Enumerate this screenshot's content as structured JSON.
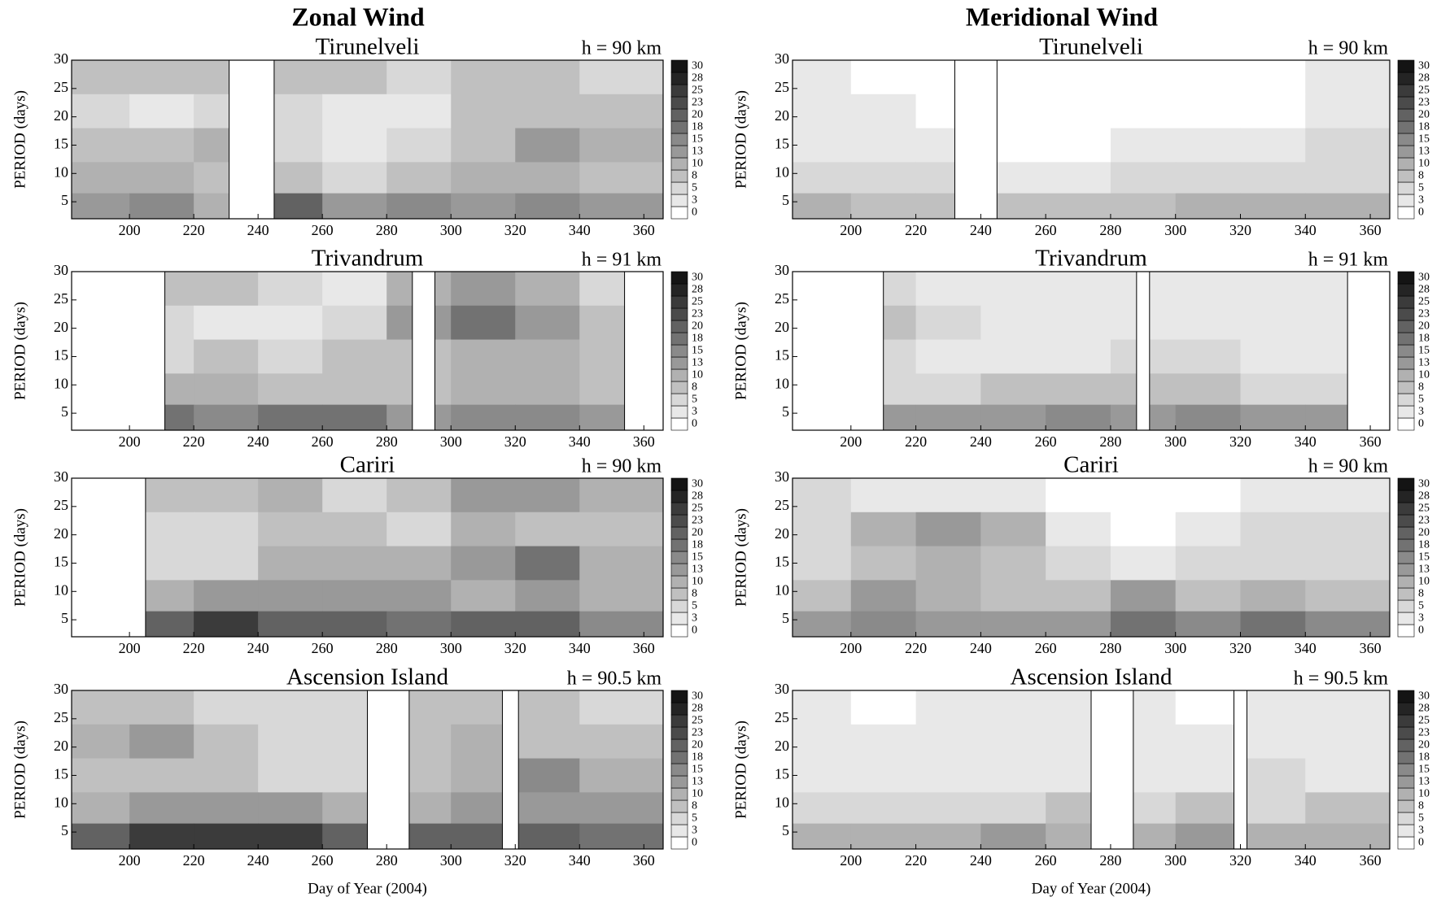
{
  "headers": [
    "Zonal Wind",
    "Meridional Wind"
  ],
  "chart_data": [
    {
      "type": "contour",
      "title": "Tirunelveli",
      "subtitle": "h = 90 km",
      "ylabel": "PERIOD (days)",
      "xlim": [
        182,
        366
      ],
      "ylim": [
        2,
        30
      ],
      "xticks": [
        200,
        220,
        240,
        260,
        280,
        300,
        320,
        340,
        360
      ],
      "yticks": [
        5,
        10,
        15,
        20,
        25,
        30
      ],
      "levels": [
        0,
        3,
        5,
        8,
        10,
        13,
        15,
        18,
        20,
        23,
        25,
        28,
        30
      ],
      "gaps": [
        [
          231,
          245
        ]
      ],
      "x": [
        190,
        210,
        230,
        250,
        270,
        290,
        310,
        330,
        350
      ],
      "y": [
        27,
        21,
        15,
        9,
        4
      ],
      "z": [
        [
          8,
          8,
          8,
          8,
          8,
          5,
          8,
          8,
          5
        ],
        [
          5,
          3,
          5,
          5,
          3,
          3,
          8,
          8,
          8
        ],
        [
          8,
          8,
          10,
          5,
          3,
          5,
          8,
          13,
          10
        ],
        [
          10,
          10,
          8,
          8,
          5,
          8,
          10,
          10,
          8
        ],
        [
          13,
          15,
          10,
          20,
          13,
          15,
          13,
          15,
          13
        ]
      ]
    },
    {
      "type": "contour",
      "title": "Trivandrum",
      "subtitle": "h = 91 km",
      "ylabel": "PERIOD (days)",
      "xlim": [
        182,
        366
      ],
      "ylim": [
        2,
        30
      ],
      "xticks": [
        200,
        220,
        240,
        260,
        280,
        300,
        320,
        340,
        360
      ],
      "yticks": [
        5,
        10,
        15,
        20,
        25,
        30
      ],
      "levels": [
        0,
        3,
        5,
        8,
        10,
        13,
        15,
        18,
        20,
        23,
        25,
        28,
        30
      ],
      "gaps": [
        [
          182,
          211
        ],
        [
          288,
          295
        ],
        [
          354,
          366
        ]
      ],
      "x": [
        190,
        210,
        230,
        250,
        270,
        290,
        310,
        330,
        350
      ],
      "y": [
        27,
        21,
        15,
        9,
        4
      ],
      "z": [
        [
          5,
          8,
          8,
          5,
          3,
          10,
          13,
          10,
          5
        ],
        [
          5,
          5,
          3,
          3,
          5,
          13,
          18,
          13,
          8
        ],
        [
          5,
          5,
          8,
          5,
          8,
          8,
          10,
          10,
          8
        ],
        [
          8,
          10,
          10,
          8,
          8,
          8,
          10,
          10,
          8
        ],
        [
          13,
          18,
          15,
          18,
          18,
          13,
          15,
          15,
          13
        ]
      ]
    },
    {
      "type": "contour",
      "title": "Cariri",
      "subtitle": "h = 90 km",
      "ylabel": "PERIOD (days)",
      "xlim": [
        182,
        366
      ],
      "ylim": [
        2,
        30
      ],
      "xticks": [
        200,
        220,
        240,
        260,
        280,
        300,
        320,
        340,
        360
      ],
      "yticks": [
        5,
        10,
        15,
        20,
        25,
        30
      ],
      "levels": [
        0,
        3,
        5,
        8,
        10,
        13,
        15,
        18,
        20,
        23,
        25,
        28,
        30
      ],
      "gaps": [
        [
          182,
          205
        ]
      ],
      "x": [
        190,
        210,
        230,
        250,
        270,
        290,
        310,
        330,
        350
      ],
      "y": [
        27,
        21,
        15,
        9,
        4
      ],
      "z": [
        [
          5,
          8,
          8,
          10,
          5,
          8,
          13,
          13,
          10
        ],
        [
          5,
          5,
          5,
          8,
          8,
          5,
          10,
          8,
          8
        ],
        [
          5,
          5,
          5,
          10,
          10,
          10,
          13,
          18,
          10
        ],
        [
          8,
          10,
          13,
          13,
          13,
          13,
          10,
          13,
          10
        ],
        [
          15,
          20,
          25,
          20,
          20,
          18,
          20,
          20,
          15
        ]
      ]
    },
    {
      "type": "contour",
      "title": "Ascension Island",
      "subtitle": "h = 90.5 km",
      "ylabel": "PERIOD (days)",
      "xlabel": "Day of Year  (2004)",
      "xlim": [
        182,
        366
      ],
      "ylim": [
        2,
        30
      ],
      "xticks": [
        200,
        220,
        240,
        260,
        280,
        300,
        320,
        340,
        360
      ],
      "yticks": [
        5,
        10,
        15,
        20,
        25,
        30
      ],
      "levels": [
        0,
        3,
        5,
        8,
        10,
        13,
        15,
        18,
        20,
        23,
        25,
        28,
        30
      ],
      "gaps": [
        [
          274,
          287
        ],
        [
          316,
          321
        ]
      ],
      "x": [
        190,
        210,
        230,
        250,
        270,
        290,
        310,
        330,
        350
      ],
      "y": [
        27,
        21,
        15,
        9,
        4
      ],
      "z": [
        [
          8,
          8,
          5,
          5,
          5,
          8,
          8,
          8,
          5
        ],
        [
          10,
          13,
          8,
          5,
          5,
          8,
          10,
          8,
          8
        ],
        [
          8,
          8,
          8,
          5,
          5,
          8,
          10,
          15,
          10
        ],
        [
          10,
          13,
          13,
          13,
          10,
          10,
          13,
          13,
          13
        ],
        [
          20,
          25,
          25,
          25,
          20,
          20,
          20,
          20,
          18
        ]
      ]
    },
    {
      "type": "contour",
      "title": "Tirunelveli",
      "subtitle": "h = 90 km",
      "ylabel": "PERIOD (days)",
      "xlim": [
        182,
        366
      ],
      "ylim": [
        2,
        30
      ],
      "xticks": [
        200,
        220,
        240,
        260,
        280,
        300,
        320,
        340,
        360
      ],
      "yticks": [
        5,
        10,
        15,
        20,
        25,
        30
      ],
      "levels": [
        0,
        3,
        5,
        8,
        10,
        13,
        15,
        18,
        20,
        23,
        25,
        28,
        30
      ],
      "gaps": [
        [
          232,
          245
        ]
      ],
      "x": [
        190,
        210,
        230,
        250,
        270,
        290,
        310,
        330,
        350
      ],
      "y": [
        27,
        21,
        15,
        9,
        4
      ],
      "z": [
        [
          3,
          0,
          0,
          0,
          0,
          0,
          0,
          0,
          3
        ],
        [
          3,
          3,
          0,
          0,
          0,
          0,
          0,
          0,
          3
        ],
        [
          3,
          3,
          3,
          0,
          0,
          3,
          3,
          3,
          5
        ],
        [
          5,
          5,
          5,
          3,
          3,
          5,
          5,
          5,
          5
        ],
        [
          10,
          8,
          8,
          8,
          8,
          8,
          10,
          10,
          10
        ]
      ]
    },
    {
      "type": "contour",
      "title": "Trivandrum",
      "subtitle": "h = 91 km",
      "ylabel": "PERIOD (days)",
      "xlim": [
        182,
        366
      ],
      "ylim": [
        2,
        30
      ],
      "xticks": [
        200,
        220,
        240,
        260,
        280,
        300,
        320,
        340,
        360
      ],
      "yticks": [
        5,
        10,
        15,
        20,
        25,
        30
      ],
      "levels": [
        0,
        3,
        5,
        8,
        10,
        13,
        15,
        18,
        20,
        23,
        25,
        28,
        30
      ],
      "gaps": [
        [
          182,
          210
        ],
        [
          288,
          292
        ],
        [
          353,
          366
        ]
      ],
      "x": [
        190,
        210,
        230,
        250,
        270,
        290,
        310,
        330,
        350
      ],
      "y": [
        27,
        21,
        15,
        9,
        4
      ],
      "z": [
        [
          3,
          5,
          3,
          3,
          3,
          3,
          3,
          3,
          3
        ],
        [
          3,
          8,
          5,
          3,
          3,
          3,
          3,
          3,
          3
        ],
        [
          3,
          5,
          3,
          3,
          3,
          5,
          5,
          3,
          3
        ],
        [
          5,
          5,
          5,
          8,
          8,
          8,
          8,
          5,
          5
        ],
        [
          10,
          13,
          13,
          13,
          15,
          13,
          15,
          13,
          13
        ]
      ]
    },
    {
      "type": "contour",
      "title": "Cariri",
      "subtitle": "h = 90 km",
      "ylabel": "PERIOD (days)",
      "xlim": [
        182,
        366
      ],
      "ylim": [
        2,
        30
      ],
      "xticks": [
        200,
        220,
        240,
        260,
        280,
        300,
        320,
        340,
        360
      ],
      "yticks": [
        5,
        10,
        15,
        20,
        25,
        30
      ],
      "levels": [
        0,
        3,
        5,
        8,
        10,
        13,
        15,
        18,
        20,
        23,
        25,
        28,
        30
      ],
      "gaps": [],
      "x": [
        190,
        210,
        230,
        250,
        270,
        290,
        310,
        330,
        350
      ],
      "y": [
        27,
        21,
        15,
        9,
        4
      ],
      "z": [
        [
          5,
          3,
          3,
          3,
          0,
          0,
          0,
          3,
          3
        ],
        [
          5,
          10,
          13,
          10,
          3,
          0,
          3,
          5,
          5
        ],
        [
          5,
          8,
          10,
          8,
          5,
          3,
          5,
          5,
          5
        ],
        [
          8,
          13,
          10,
          8,
          8,
          13,
          8,
          10,
          8
        ],
        [
          13,
          15,
          13,
          13,
          13,
          18,
          15,
          18,
          15
        ]
      ]
    },
    {
      "type": "contour",
      "title": "Ascension Island",
      "subtitle": "h = 90.5 km",
      "ylabel": "PERIOD (days)",
      "xlabel": "Day of Year  (2004)",
      "xlim": [
        182,
        366
      ],
      "ylim": [
        2,
        30
      ],
      "xticks": [
        200,
        220,
        240,
        260,
        280,
        300,
        320,
        340,
        360
      ],
      "yticks": [
        5,
        10,
        15,
        20,
        25,
        30
      ],
      "levels": [
        0,
        3,
        5,
        8,
        10,
        13,
        15,
        18,
        20,
        23,
        25,
        28,
        30
      ],
      "gaps": [
        [
          274,
          287
        ],
        [
          318,
          322
        ]
      ],
      "x": [
        190,
        210,
        230,
        250,
        270,
        290,
        310,
        330,
        350
      ],
      "y": [
        27,
        21,
        15,
        9,
        4
      ],
      "z": [
        [
          3,
          0,
          3,
          3,
          3,
          3,
          0,
          3,
          3
        ],
        [
          3,
          3,
          3,
          3,
          3,
          3,
          3,
          3,
          3
        ],
        [
          3,
          3,
          3,
          3,
          3,
          3,
          3,
          5,
          3
        ],
        [
          5,
          5,
          5,
          5,
          8,
          5,
          8,
          5,
          8
        ],
        [
          10,
          10,
          10,
          13,
          10,
          10,
          13,
          10,
          10
        ]
      ]
    }
  ]
}
